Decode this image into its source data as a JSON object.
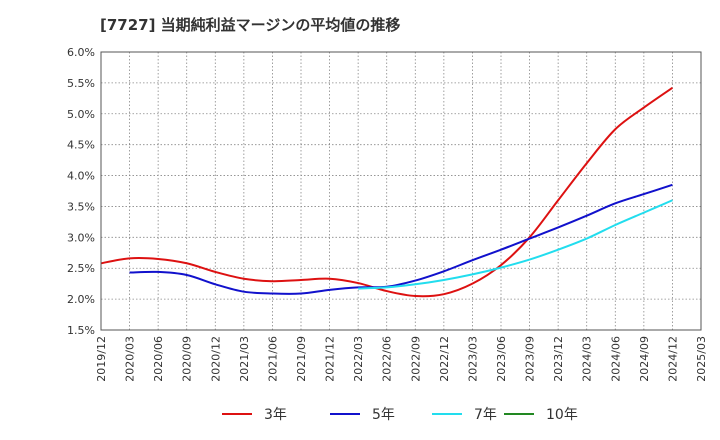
{
  "chart_data": {
    "type": "line",
    "title": "[7727]  当期純利益マージンの平均値の推移",
    "xlabel": "",
    "ylabel": "",
    "ylim": [
      1.5,
      6.0
    ],
    "y_ticks": [
      "1.5%",
      "2.0%",
      "2.5%",
      "3.0%",
      "3.5%",
      "4.0%",
      "4.5%",
      "5.0%",
      "5.5%",
      "6.0%"
    ],
    "y_tick_values": [
      1.5,
      2.0,
      2.5,
      3.0,
      3.5,
      4.0,
      4.5,
      5.0,
      5.5,
      6.0
    ],
    "x_ticks": [
      "2019/12",
      "2020/03",
      "2020/06",
      "2020/09",
      "2020/12",
      "2021/03",
      "2021/06",
      "2021/09",
      "2021/12",
      "2022/03",
      "2022/06",
      "2022/09",
      "2022/12",
      "2023/03",
      "2023/06",
      "2023/09",
      "2023/12",
      "2024/03",
      "2024/06",
      "2024/09",
      "2024/12",
      "2025/03"
    ],
    "grid": true,
    "legend_position": "bottom",
    "series": [
      {
        "name": "3年",
        "color": "#dd1111",
        "start_index": 0,
        "values": [
          2.58,
          2.66,
          2.65,
          2.58,
          2.44,
          2.33,
          2.29,
          2.31,
          2.33,
          2.26,
          2.13,
          2.05,
          2.08,
          2.25,
          2.55,
          3.0,
          3.6,
          4.2,
          4.75,
          5.1,
          5.42
        ]
      },
      {
        "name": "5年",
        "color": "#1111cc",
        "start_index": 1,
        "values": [
          2.43,
          2.44,
          2.39,
          2.24,
          2.12,
          2.09,
          2.09,
          2.15,
          2.19,
          2.2,
          2.3,
          2.45,
          2.63,
          2.8,
          2.98,
          3.16,
          3.35,
          3.55,
          3.7,
          3.85
        ]
      },
      {
        "name": "7年",
        "color": "#22ddee",
        "start_index": 9,
        "values": [
          2.17,
          2.19,
          2.24,
          2.31,
          2.4,
          2.51,
          2.64,
          2.8,
          2.98,
          3.2,
          3.4,
          3.6
        ]
      },
      {
        "name": "10年",
        "color": "#228822",
        "start_index": 0,
        "values": []
      }
    ]
  }
}
